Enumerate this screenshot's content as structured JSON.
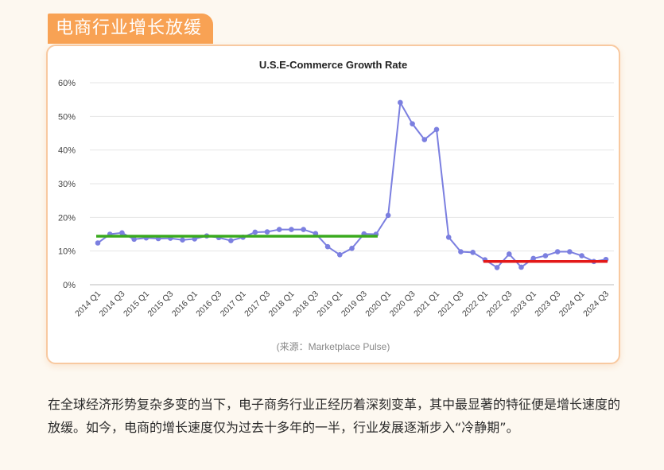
{
  "section": {
    "title": "电商行业增长放缓"
  },
  "chart_data": {
    "type": "line",
    "title": "U.S.E-Commerce Growth Rate",
    "xlabel": "",
    "ylabel": "",
    "ylim": [
      0,
      60
    ],
    "yticks": [
      "0%",
      "10%",
      "20%",
      "30%",
      "40%",
      "50%",
      "60%"
    ],
    "yticks_values": [
      0,
      10,
      20,
      30,
      40,
      50,
      60
    ],
    "grid": true,
    "categories": [
      "2014 Q1",
      "2014 Q2",
      "2014 Q3",
      "2014 Q4",
      "2015 Q1",
      "2015 Q2",
      "2015 Q3",
      "2015 Q4",
      "2016 Q1",
      "2016 Q2",
      "2016 Q3",
      "2016 Q4",
      "2017 Q1",
      "2017 Q2",
      "2017 Q3",
      "2017 Q4",
      "2018 Q1",
      "2018 Q2",
      "2018 Q3",
      "2018 Q4",
      "2019 Q1",
      "2019 Q2",
      "2019 Q3",
      "2019 Q4",
      "2020 Q1",
      "2020 Q2",
      "2020 Q3",
      "2020 Q4",
      "2021 Q1",
      "2021 Q2",
      "2021 Q3",
      "2021 Q4",
      "2022 Q1",
      "2022 Q2",
      "2022 Q3",
      "2022 Q4",
      "2023 Q1",
      "2023 Q2",
      "2023 Q3",
      "2023 Q4",
      "2024 Q1",
      "2024 Q2",
      "2024 Q3"
    ],
    "tick_labels": [
      "2014 Q1",
      "2014 Q3",
      "2015 Q1",
      "2015 Q3",
      "2016 Q1",
      "2016 Q3",
      "2017 Q1",
      "2017 Q3",
      "2018 Q1",
      "2018 Q3",
      "2019 Q1",
      "2019 Q3",
      "2020 Q1",
      "2020 Q3",
      "2021 Q1",
      "2021 Q3",
      "2022 Q1",
      "2022 Q3",
      "2023 Q1",
      "2023 Q3",
      "2024 Q1",
      "2024 Q3"
    ],
    "series": [
      {
        "color": "#7b7fe0",
        "values": [
          12.4,
          15.0,
          15.4,
          13.5,
          13.9,
          13.7,
          13.8,
          13.3,
          13.6,
          14.5,
          14.0,
          13.1,
          14.1,
          15.6,
          15.7,
          16.4,
          16.4,
          16.4,
          15.2,
          11.3,
          8.9,
          10.8,
          15.1,
          15.0,
          20.6,
          54.1,
          47.8,
          43.1,
          46.1,
          14.1,
          9.8,
          9.6,
          7.4,
          5.1,
          9.1,
          5.2,
          7.8,
          8.6,
          9.8,
          9.8,
          8.6,
          6.9,
          7.5
        ]
      }
    ],
    "reference_lines": [
      {
        "color": "#3aaa1e",
        "y": 14.4,
        "x_start": "2014 Q1",
        "x_end": "2019 Q4"
      },
      {
        "color": "#e31919",
        "y": 6.9,
        "x_start": "2022 Q1",
        "x_end": "2024 Q3"
      }
    ],
    "source": "(来源：Marketplace Pulse)"
  },
  "body": {
    "paragraph": "在全球经济形势复杂多变的当下，电子商务行业正经历着深刻变革，其中最显著的特征便是增长速度的放缓。如今，电商的增长速度仅为过去十多年的一半，行业发展逐渐步入“冷静期”。"
  }
}
